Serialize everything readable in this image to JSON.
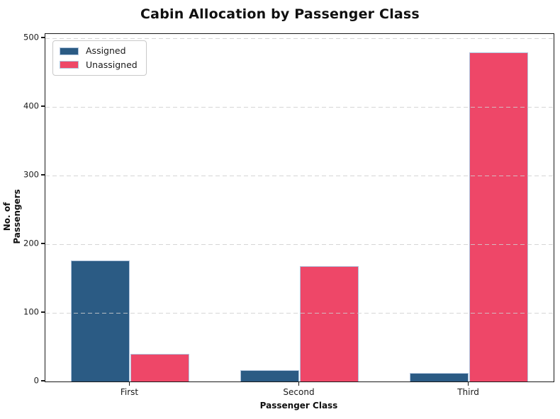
{
  "chart_data": {
    "type": "bar",
    "title": "Cabin Allocation by Passenger Class",
    "xlabel": "Passenger Class",
    "ylabel": "No. of Passengers",
    "categories": [
      "First",
      "Second",
      "Third"
    ],
    "series": [
      {
        "name": "Assigned",
        "color": "#2b5b84",
        "values": [
          176,
          16,
          12
        ]
      },
      {
        "name": "Unassigned",
        "color": "#ee4768",
        "values": [
          40,
          168,
          479
        ]
      }
    ],
    "ylim": [
      0,
      506
    ],
    "yticks": [
      0,
      100,
      200,
      300,
      400,
      500
    ],
    "grid": "horizontal-dashed-above-bars",
    "grid_color": "#cfcfcf",
    "legend_position": "upper-left",
    "bar_edge_color": "#b0c4de",
    "bar_width_fraction": 0.35,
    "spine_color": "#1a1a1a",
    "background_color": "#ffffff"
  }
}
